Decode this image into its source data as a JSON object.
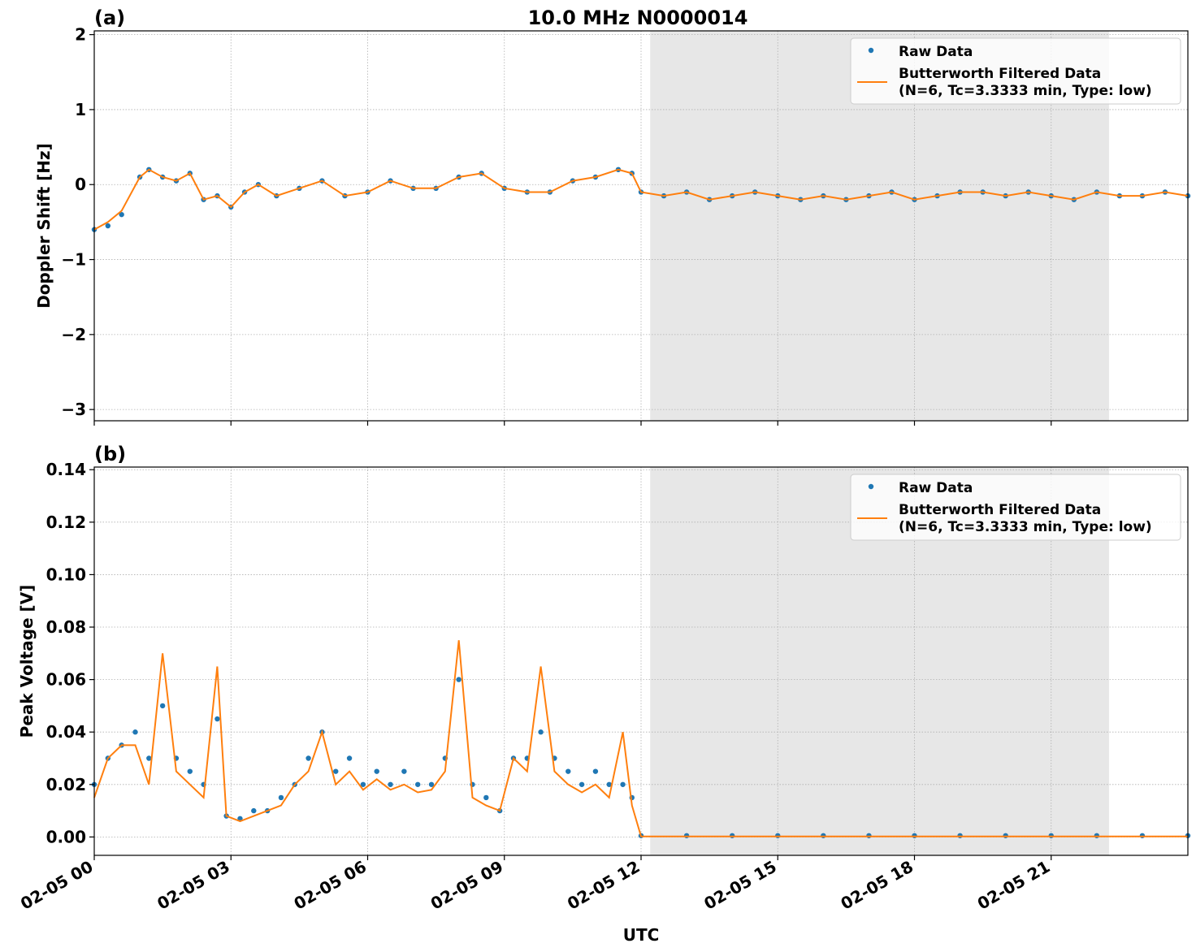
{
  "figure": {
    "title": "10.0 MHz N0000014",
    "xlabel": "UTC",
    "x_tick_labels": [
      "02-05 00",
      "02-05 03",
      "02-05 06",
      "02-05 09",
      "02-05 12",
      "02-05 15",
      "02-05 18",
      "02-05 21"
    ]
  },
  "colors": {
    "raw": "#1f77b4",
    "filtered": "#ff7f0e",
    "shade": "#e7e7e7"
  },
  "legend": {
    "raw_label": "Raw Data",
    "filtered_label_line1": "Butterworth Filtered Data",
    "filtered_label_line2": "(N=6, Tc=3.3333 min, Type: low)"
  },
  "chart_data": [
    {
      "panel": "(a)",
      "type": "scatter",
      "title": "10.0 MHz N0000014",
      "xlabel": "UTC",
      "ylabel": "Doppler Shift [Hz]",
      "x_unit": "hours since 02-05 00 UTC",
      "xlim": [
        0,
        24
      ],
      "ylim": [
        -3.15,
        2.05
      ],
      "y_ticks": [
        2,
        1,
        0,
        -1,
        -2,
        -3
      ],
      "y_tick_labels": [
        "2",
        "1",
        "0",
        "−1",
        "−2",
        "−3"
      ],
      "grid": true,
      "legend": "top-right",
      "shaded_interval_hours": [
        12.2,
        22.27
      ],
      "series": [
        {
          "name": "Raw Data",
          "marker": "point",
          "x": [
            0,
            0.3,
            0.6,
            1.0,
            1.2,
            1.5,
            1.8,
            2.1,
            2.4,
            2.7,
            3.0,
            3.3,
            3.6,
            4.0,
            4.5,
            5.0,
            5.5,
            6.0,
            6.5,
            7.0,
            7.5,
            8.0,
            8.5,
            9.0,
            9.5,
            10.0,
            10.5,
            11.0,
            11.5,
            11.8,
            12.0,
            12.5,
            13.0,
            13.5,
            14.0,
            14.5,
            15.0,
            15.5,
            16.0,
            16.5,
            17.0,
            17.5,
            18.0,
            18.5,
            19.0,
            19.5,
            20.0,
            20.5,
            21.0,
            21.5,
            22.0,
            22.5,
            23.0,
            23.5,
            24.0
          ],
          "y": [
            -0.6,
            -0.55,
            -0.4,
            0.1,
            0.2,
            0.1,
            0.05,
            0.15,
            -0.2,
            -0.15,
            -0.3,
            -0.1,
            0.0,
            -0.15,
            -0.05,
            0.05,
            -0.15,
            -0.1,
            0.05,
            -0.05,
            -0.05,
            0.1,
            0.15,
            -0.05,
            -0.1,
            -0.1,
            0.05,
            0.1,
            0.2,
            0.15,
            -0.1,
            -0.15,
            -0.1,
            -0.2,
            -0.15,
            -0.1,
            -0.15,
            -0.2,
            -0.15,
            -0.2,
            -0.15,
            -0.1,
            -0.2,
            -0.15,
            -0.1,
            -0.1,
            -0.15,
            -0.1,
            -0.15,
            -0.2,
            -0.1,
            -0.15,
            -0.15,
            -0.1,
            -0.15
          ]
        },
        {
          "name": "Butterworth Filtered Data\n(N=6, Tc=3.3333 min, Type: low)",
          "marker": "line",
          "x": [
            0,
            0.3,
            0.6,
            1.0,
            1.2,
            1.5,
            1.8,
            2.1,
            2.4,
            2.7,
            3.0,
            3.3,
            3.6,
            4.0,
            4.5,
            5.0,
            5.5,
            6.0,
            6.5,
            7.0,
            7.5,
            8.0,
            8.5,
            9.0,
            9.5,
            10.0,
            10.5,
            11.0,
            11.5,
            11.8,
            12.0,
            12.5,
            13.0,
            13.5,
            14.0,
            14.5,
            15.0,
            15.5,
            16.0,
            16.5,
            17.0,
            17.5,
            18.0,
            18.5,
            19.0,
            19.5,
            20.0,
            20.5,
            21.0,
            21.5,
            22.0,
            22.5,
            23.0,
            23.5,
            24.0
          ],
          "y": [
            -0.6,
            -0.5,
            -0.35,
            0.1,
            0.2,
            0.1,
            0.05,
            0.15,
            -0.2,
            -0.15,
            -0.3,
            -0.1,
            0.0,
            -0.15,
            -0.05,
            0.05,
            -0.15,
            -0.1,
            0.05,
            -0.05,
            -0.05,
            0.1,
            0.15,
            -0.05,
            -0.1,
            -0.1,
            0.05,
            0.1,
            0.2,
            0.15,
            -0.1,
            -0.15,
            -0.1,
            -0.2,
            -0.15,
            -0.1,
            -0.15,
            -0.2,
            -0.15,
            -0.2,
            -0.15,
            -0.1,
            -0.2,
            -0.15,
            -0.1,
            -0.1,
            -0.15,
            -0.1,
            -0.15,
            -0.2,
            -0.1,
            -0.15,
            -0.15,
            -0.1,
            -0.15
          ]
        }
      ]
    },
    {
      "panel": "(b)",
      "type": "scatter",
      "xlabel": "UTC",
      "ylabel": "Peak Voltage [V]",
      "x_unit": "hours since 02-05 00 UTC",
      "xlim": [
        0,
        24
      ],
      "ylim": [
        -0.007,
        0.141
      ],
      "y_ticks": [
        0.14,
        0.12,
        0.1,
        0.08,
        0.06,
        0.04,
        0.02,
        0.0
      ],
      "y_tick_labels": [
        "0.14",
        "0.12",
        "0.10",
        "0.08",
        "0.06",
        "0.04",
        "0.02",
        "0.00"
      ],
      "grid": true,
      "legend": "top-right",
      "shaded_interval_hours": [
        12.2,
        22.27
      ],
      "series": [
        {
          "name": "Raw Data",
          "marker": "point",
          "x": [
            0,
            0.3,
            0.6,
            0.9,
            1.2,
            1.5,
            1.8,
            2.1,
            2.4,
            2.7,
            2.9,
            3.2,
            3.5,
            3.8,
            4.1,
            4.4,
            4.7,
            5.0,
            5.3,
            5.6,
            5.9,
            6.2,
            6.5,
            6.8,
            7.1,
            7.4,
            7.7,
            8.0,
            8.3,
            8.6,
            8.9,
            9.2,
            9.5,
            9.8,
            10.1,
            10.4,
            10.7,
            11.0,
            11.3,
            11.6,
            11.8,
            12.0,
            13.0,
            14.0,
            15.0,
            16.0,
            17.0,
            18.0,
            19.0,
            20.0,
            21.0,
            22.0,
            23.0,
            24.0
          ],
          "y": [
            0.02,
            0.03,
            0.035,
            0.04,
            0.03,
            0.05,
            0.03,
            0.025,
            0.02,
            0.045,
            0.008,
            0.007,
            0.01,
            0.01,
            0.015,
            0.02,
            0.03,
            0.04,
            0.025,
            0.03,
            0.02,
            0.025,
            0.02,
            0.025,
            0.02,
            0.02,
            0.03,
            0.06,
            0.02,
            0.015,
            0.01,
            0.03,
            0.03,
            0.04,
            0.03,
            0.025,
            0.02,
            0.025,
            0.02,
            0.02,
            0.015,
            0.0005,
            0.0005,
            0.0005,
            0.0005,
            0.0005,
            0.0005,
            0.0005,
            0.0005,
            0.0005,
            0.0005,
            0.0005,
            0.0005,
            0.0005
          ]
        },
        {
          "name": "Butterworth Filtered Data\n(N=6, Tc=3.3333 min, Type: low)",
          "marker": "line",
          "x": [
            0,
            0.3,
            0.6,
            0.9,
            1.2,
            1.5,
            1.8,
            2.1,
            2.4,
            2.7,
            2.9,
            3.2,
            3.5,
            3.8,
            4.1,
            4.4,
            4.7,
            5.0,
            5.3,
            5.6,
            5.9,
            6.2,
            6.5,
            6.8,
            7.1,
            7.4,
            7.7,
            8.0,
            8.3,
            8.6,
            8.9,
            9.2,
            9.5,
            9.8,
            10.1,
            10.4,
            10.7,
            11.0,
            11.3,
            11.6,
            11.8,
            12.0,
            13.0,
            14.0,
            15.0,
            16.0,
            17.0,
            18.0,
            19.0,
            20.0,
            21.0,
            22.0,
            23.0,
            24.0
          ],
          "y": [
            0.015,
            0.03,
            0.035,
            0.035,
            0.02,
            0.07,
            0.025,
            0.02,
            0.015,
            0.065,
            0.008,
            0.006,
            0.008,
            0.01,
            0.012,
            0.02,
            0.025,
            0.04,
            0.02,
            0.025,
            0.018,
            0.022,
            0.018,
            0.02,
            0.017,
            0.018,
            0.025,
            0.075,
            0.015,
            0.012,
            0.01,
            0.03,
            0.025,
            0.065,
            0.025,
            0.02,
            0.017,
            0.02,
            0.015,
            0.04,
            0.012,
            0.0002,
            0.0002,
            0.0002,
            0.0002,
            0.0002,
            0.0002,
            0.0002,
            0.0002,
            0.0002,
            0.0002,
            0.0002,
            0.0002,
            0.0002
          ]
        }
      ]
    }
  ]
}
